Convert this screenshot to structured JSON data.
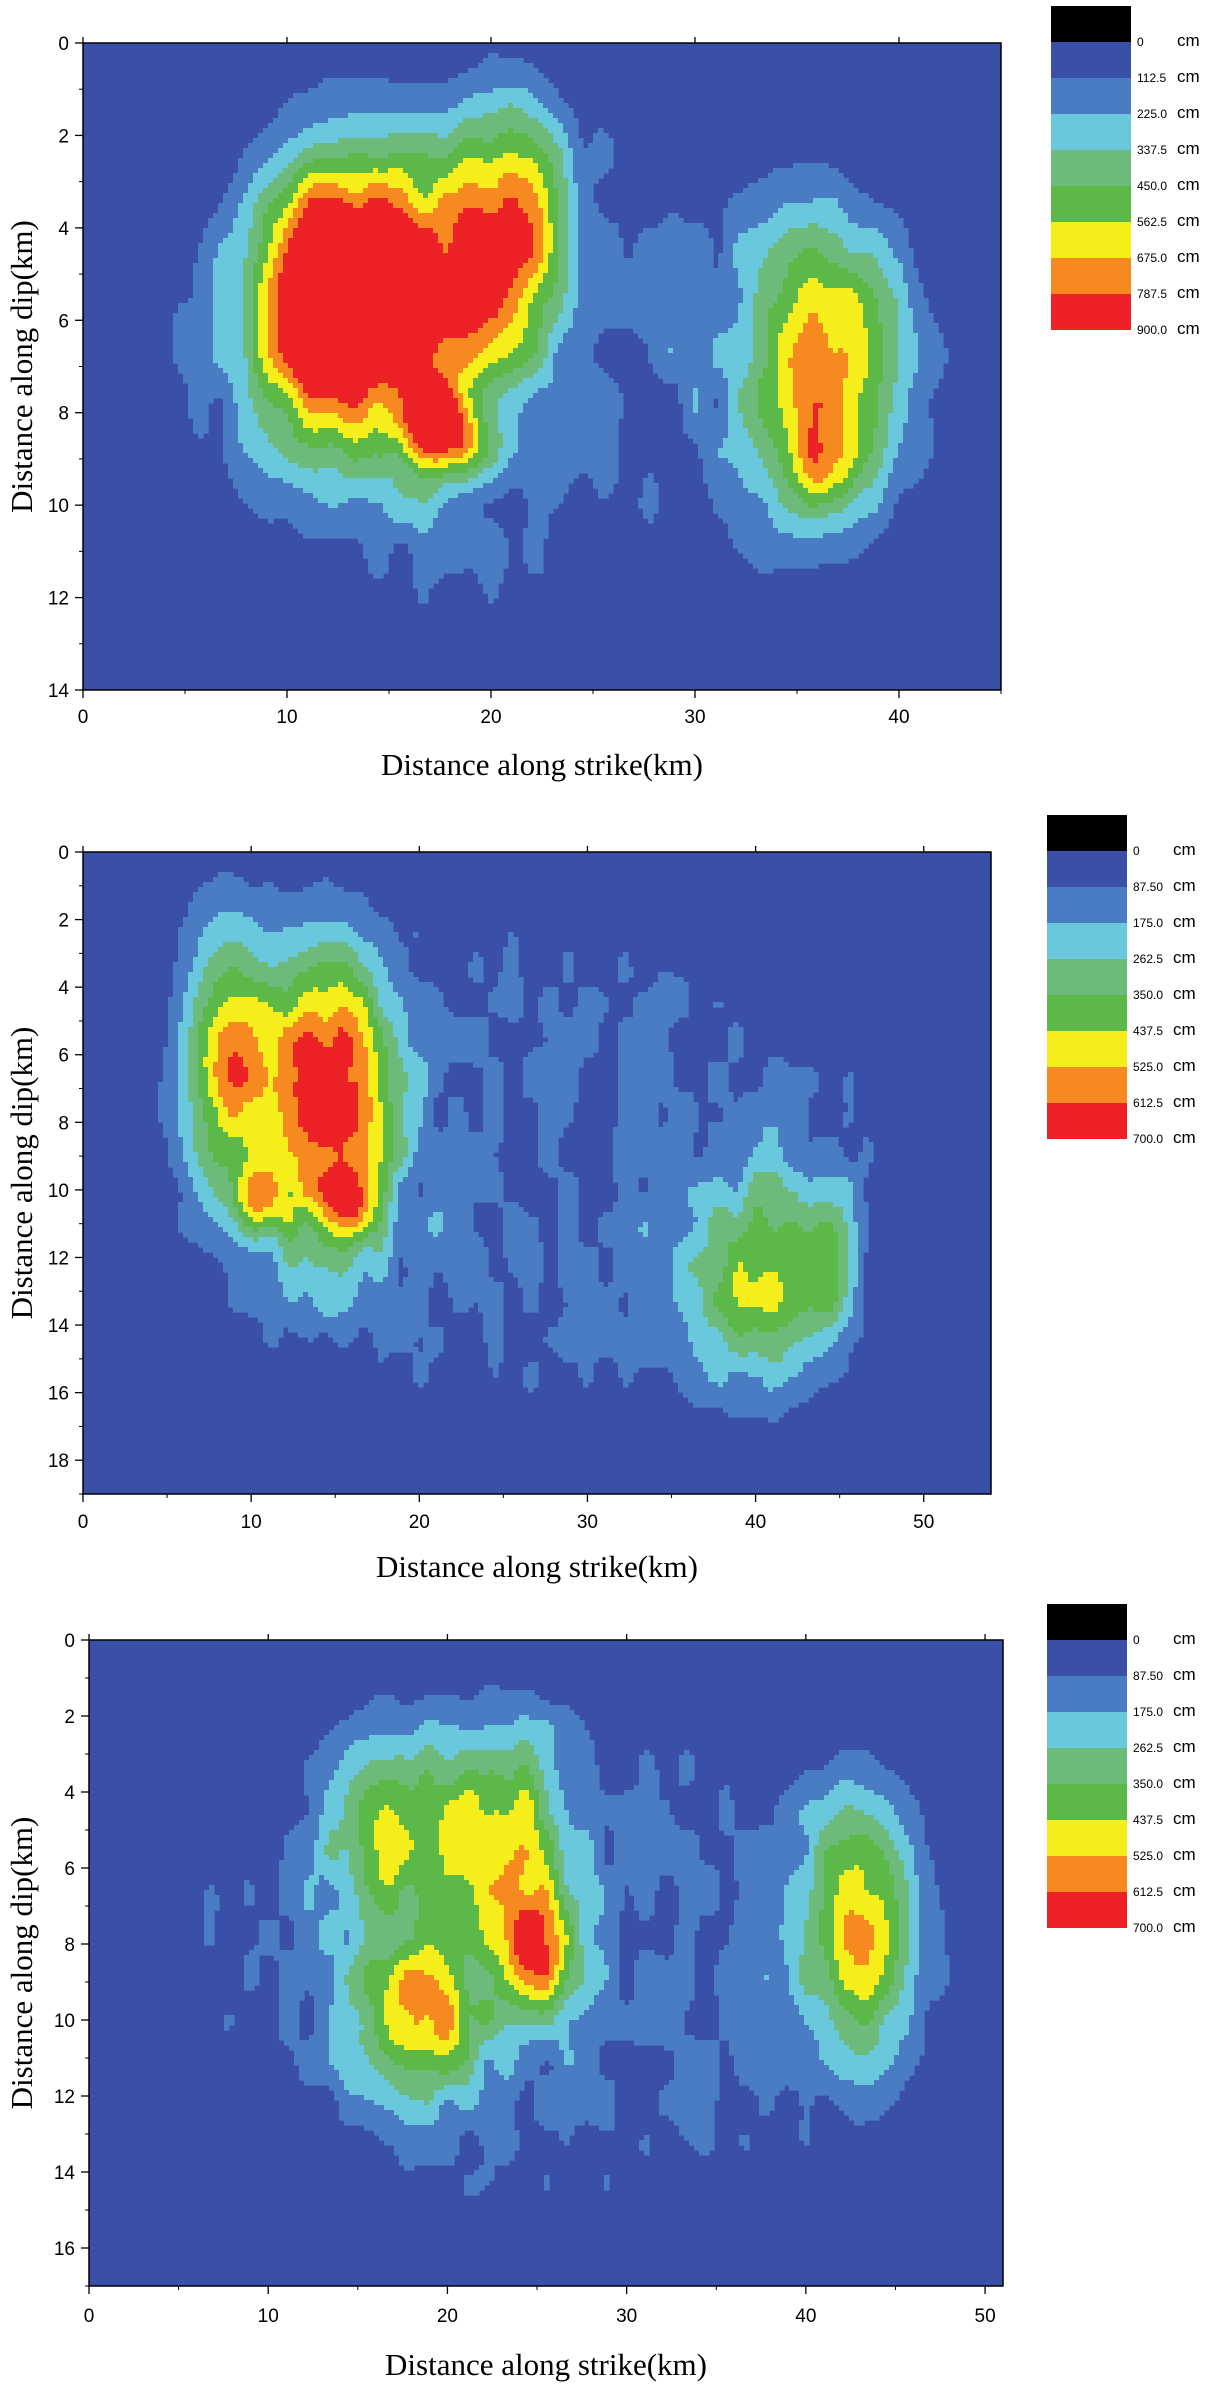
{
  "chart_data": [
    {
      "type": "heatmap",
      "subtype": "filled-contour",
      "title": "",
      "xlabel": "Distance along strike(km)",
      "ylabel": "Distance along dip(km)",
      "xlim": [
        0,
        45
      ],
      "ylim": [
        14,
        0
      ],
      "y_axis_inverted": true,
      "x_ticks": [
        0,
        10,
        20,
        30,
        40
      ],
      "y_ticks": [
        0,
        2,
        4,
        6,
        8,
        10,
        12,
        14
      ],
      "grid": false,
      "legend_position": "right",
      "colorbar": {
        "unit": "cm",
        "levels": [
          "0",
          "112.5",
          "225.0",
          "337.5",
          "450.0",
          "562.5",
          "675.0",
          "787.5",
          "900.0"
        ],
        "colors": [
          "#000000",
          "#3a4fa6",
          "#4a7cc4",
          "#69c8dc",
          "#6cbb7a",
          "#5cb847",
          "#f5ee1a",
          "#f6891f",
          "#ec2227"
        ]
      },
      "background_color": "#3a4fa6",
      "asperities": [
        {
          "x": 14.5,
          "y": 5.5,
          "sx": 5.5,
          "sy": 3.2,
          "peak": 900
        },
        {
          "x": 17.5,
          "y": 8.4,
          "sx": 1.8,
          "sy": 0.9,
          "peak": 650
        },
        {
          "x": 21.0,
          "y": 4.0,
          "sx": 2.8,
          "sy": 2.8,
          "peak": 560
        },
        {
          "x": 11.2,
          "y": 5.5,
          "sx": 2.6,
          "sy": 2.6,
          "peak": 480
        },
        {
          "x": 36.5,
          "y": 7.0,
          "sx": 3.8,
          "sy": 3.1,
          "peak": 640
        },
        {
          "x": 36.3,
          "y": 9.2,
          "sx": 1.4,
          "sy": 1.0,
          "peak": 300
        }
      ]
    },
    {
      "type": "heatmap",
      "subtype": "filled-contour",
      "title": "",
      "xlabel": "Distance along strike(km)",
      "ylabel": "Distance along dip(km)",
      "xlim": [
        0,
        54
      ],
      "ylim": [
        19,
        0
      ],
      "y_axis_inverted": true,
      "x_ticks": [
        0,
        10,
        20,
        30,
        40,
        50
      ],
      "y_ticks": [
        0,
        2,
        4,
        6,
        8,
        10,
        12,
        14,
        16,
        18
      ],
      "grid": false,
      "legend_position": "right",
      "colorbar": {
        "unit": "cm",
        "levels": [
          "0",
          "87.50",
          "175.0",
          "262.5",
          "350.0",
          "437.5",
          "525.0",
          "612.5",
          "700.0"
        ],
        "colors": [
          "#000000",
          "#3a4fa6",
          "#4a7cc4",
          "#69c8dc",
          "#6cbb7a",
          "#5cb847",
          "#f5ee1a",
          "#f6891f",
          "#ec2227"
        ]
      },
      "background_color": "#3a4fa6",
      "asperities": [
        {
          "x": 14.5,
          "y": 7.2,
          "sx": 3.8,
          "sy": 4.5,
          "peak": 640
        },
        {
          "x": 8.5,
          "y": 6.0,
          "sx": 2.8,
          "sy": 4.0,
          "peak": 470
        },
        {
          "x": 10.5,
          "y": 10.3,
          "sx": 1.6,
          "sy": 1.0,
          "peak": 300
        },
        {
          "x": 16.0,
          "y": 10.3,
          "sx": 1.4,
          "sy": 0.9,
          "peak": 300
        },
        {
          "x": 40.5,
          "y": 12.8,
          "sx": 4.3,
          "sy": 3.2,
          "peak": 360
        },
        {
          "x": 44.5,
          "y": 12.0,
          "sx": 1.5,
          "sy": 2.5,
          "peak": 180
        }
      ]
    },
    {
      "type": "heatmap",
      "subtype": "filled-contour",
      "title": "",
      "xlabel": "Distance along strike(km)",
      "ylabel": "Distance along dip(km)",
      "xlim": [
        0,
        51
      ],
      "ylim": [
        17,
        0
      ],
      "y_axis_inverted": true,
      "x_ticks": [
        0,
        10,
        20,
        30,
        40,
        50
      ],
      "y_ticks": [
        0,
        2,
        4,
        6,
        8,
        10,
        12,
        14,
        16
      ],
      "grid": false,
      "legend_position": "right",
      "colorbar": {
        "unit": "cm",
        "levels": [
          "0",
          "87.50",
          "175.0",
          "262.5",
          "350.0",
          "437.5",
          "525.0",
          "612.5",
          "700.0"
        ],
        "colors": [
          "#000000",
          "#3a4fa6",
          "#4a7cc4",
          "#69c8dc",
          "#6cbb7a",
          "#5cb847",
          "#f5ee1a",
          "#f6891f",
          "#ec2227"
        ]
      },
      "background_color": "#3a4fa6",
      "asperities": [
        {
          "x": 16.5,
          "y": 5.0,
          "sx": 3.2,
          "sy": 2.8,
          "peak": 380
        },
        {
          "x": 23.0,
          "y": 5.2,
          "sx": 3.5,
          "sy": 3.0,
          "peak": 420
        },
        {
          "x": 18.5,
          "y": 10.0,
          "sx": 3.5,
          "sy": 2.0,
          "peak": 470
        },
        {
          "x": 25.0,
          "y": 8.3,
          "sx": 2.2,
          "sy": 1.8,
          "peak": 470
        },
        {
          "x": 43.0,
          "y": 7.5,
          "sx": 3.4,
          "sy": 3.6,
          "peak": 450
        }
      ]
    }
  ]
}
